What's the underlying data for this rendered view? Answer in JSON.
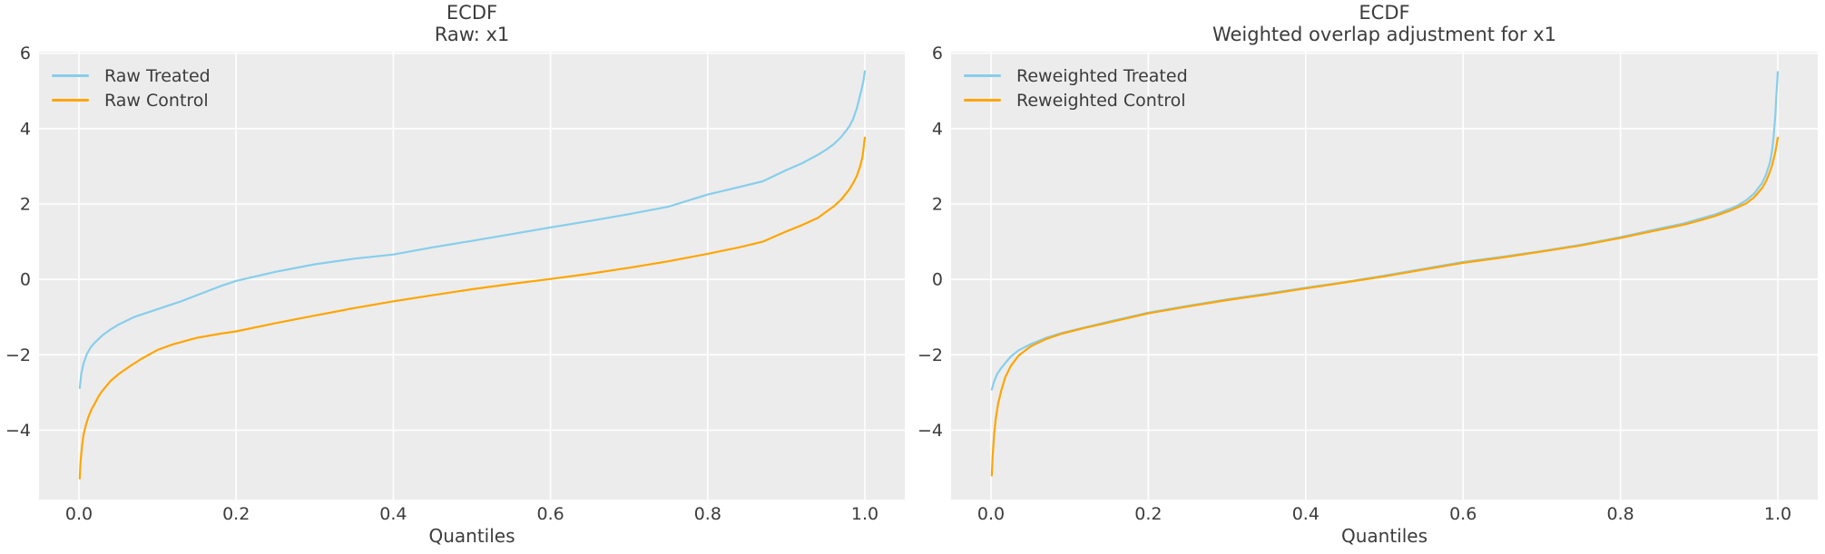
{
  "styles": {
    "panel_bg": "#ececec",
    "grid": "#ffffff",
    "text": "#3c3c3c",
    "treated_color": "#87ceeb",
    "control_color": "#ffa500"
  },
  "chart_data": [
    {
      "type": "line",
      "title_line1": "ECDF",
      "title_line2": "Raw: x1",
      "xlabel": "Quantiles",
      "grid": true,
      "legend_position": "upper left",
      "xlim": [
        -0.0508,
        1.0508
      ],
      "ylim": [
        -5.84,
        6.04
      ],
      "xticks": {
        "values": [
          0.0,
          0.2,
          0.4,
          0.6,
          0.8,
          1.0
        ],
        "labels": [
          "0.0",
          "0.2",
          "0.4",
          "0.6",
          "0.8",
          "1.0"
        ]
      },
      "yticks": {
        "values": [
          -4,
          -2,
          0,
          2,
          4,
          6
        ],
        "labels": [
          "−4",
          "−2",
          "0",
          "2",
          "4",
          "6"
        ]
      },
      "series": [
        {
          "name": "Raw Treated",
          "color": "#87ceeb",
          "x": [
            0.001,
            0.003,
            0.006,
            0.01,
            0.015,
            0.02,
            0.03,
            0.04,
            0.05,
            0.07,
            0.09,
            0.11,
            0.13,
            0.15,
            0.18,
            0.2,
            0.25,
            0.3,
            0.35,
            0.4,
            0.45,
            0.5,
            0.55,
            0.6,
            0.65,
            0.7,
            0.75,
            0.8,
            0.84,
            0.87,
            0.9,
            0.92,
            0.94,
            0.95,
            0.96,
            0.97,
            0.98,
            0.985,
            0.99,
            0.993,
            0.996,
            0.998,
            1.0
          ],
          "y": [
            -2.88,
            -2.5,
            -2.22,
            -1.98,
            -1.8,
            -1.68,
            -1.48,
            -1.33,
            -1.2,
            -1.0,
            -0.86,
            -0.72,
            -0.58,
            -0.42,
            -0.18,
            -0.04,
            0.2,
            0.4,
            0.55,
            0.66,
            0.85,
            1.02,
            1.2,
            1.38,
            1.55,
            1.73,
            1.93,
            2.25,
            2.45,
            2.6,
            2.9,
            3.08,
            3.3,
            3.43,
            3.58,
            3.78,
            4.05,
            4.25,
            4.55,
            4.8,
            5.05,
            5.25,
            5.52
          ]
        },
        {
          "name": "Raw Control",
          "color": "#ffa500",
          "x": [
            0.001,
            0.002,
            0.004,
            0.006,
            0.009,
            0.012,
            0.016,
            0.02,
            0.025,
            0.03,
            0.04,
            0.05,
            0.065,
            0.08,
            0.1,
            0.12,
            0.15,
            0.18,
            0.2,
            0.25,
            0.3,
            0.35,
            0.4,
            0.45,
            0.5,
            0.55,
            0.6,
            0.65,
            0.7,
            0.75,
            0.8,
            0.84,
            0.87,
            0.9,
            0.92,
            0.94,
            0.95,
            0.96,
            0.97,
            0.98,
            0.985,
            0.99,
            0.994,
            0.997,
            1.0
          ],
          "y": [
            -5.28,
            -4.85,
            -4.4,
            -4.1,
            -3.85,
            -3.65,
            -3.45,
            -3.3,
            -3.1,
            -2.95,
            -2.7,
            -2.52,
            -2.3,
            -2.1,
            -1.87,
            -1.72,
            -1.55,
            -1.44,
            -1.38,
            -1.16,
            -0.96,
            -0.76,
            -0.58,
            -0.42,
            -0.26,
            -0.12,
            0.01,
            0.15,
            0.31,
            0.48,
            0.68,
            0.85,
            1.0,
            1.27,
            1.44,
            1.63,
            1.78,
            1.93,
            2.12,
            2.38,
            2.55,
            2.75,
            3.0,
            3.25,
            3.76
          ]
        }
      ]
    },
    {
      "type": "line",
      "title_line1": "ECDF",
      "title_line2": "Weighted overlap adjustment for x1",
      "xlabel": "Quantiles",
      "grid": true,
      "legend_position": "upper left",
      "xlim": [
        -0.0508,
        1.0508
      ],
      "ylim": [
        -5.84,
        6.04
      ],
      "xticks": {
        "values": [
          0.0,
          0.2,
          0.4,
          0.6,
          0.8,
          1.0
        ],
        "labels": [
          "0.0",
          "0.2",
          "0.4",
          "0.6",
          "0.8",
          "1.0"
        ]
      },
      "yticks": {
        "values": [
          -4,
          -2,
          0,
          2,
          4,
          6
        ],
        "labels": [
          "−4",
          "−2",
          "0",
          "2",
          "4",
          "6"
        ]
      },
      "series": [
        {
          "name": "Reweighted Treated",
          "color": "#87ceeb",
          "x": [
            0.001,
            0.004,
            0.008,
            0.012,
            0.018,
            0.025,
            0.035,
            0.05,
            0.07,
            0.09,
            0.12,
            0.15,
            0.2,
            0.25,
            0.3,
            0.35,
            0.4,
            0.45,
            0.5,
            0.55,
            0.6,
            0.65,
            0.7,
            0.75,
            0.8,
            0.85,
            0.88,
            0.9,
            0.92,
            0.94,
            0.95,
            0.96,
            0.97,
            0.98,
            0.985,
            0.99,
            0.993,
            0.995,
            0.997,
            0.998,
            0.999,
            1.0
          ],
          "y": [
            -2.92,
            -2.7,
            -2.5,
            -2.38,
            -2.22,
            -2.05,
            -1.88,
            -1.72,
            -1.55,
            -1.42,
            -1.27,
            -1.12,
            -0.88,
            -0.7,
            -0.53,
            -0.38,
            -0.22,
            -0.07,
            0.1,
            0.28,
            0.46,
            0.6,
            0.75,
            0.92,
            1.12,
            1.35,
            1.48,
            1.6,
            1.72,
            1.88,
            1.97,
            2.1,
            2.28,
            2.55,
            2.78,
            3.1,
            3.45,
            3.85,
            4.4,
            4.8,
            5.15,
            5.5
          ]
        },
        {
          "name": "Reweighted Control",
          "color": "#ffa500",
          "x": [
            0.001,
            0.002,
            0.004,
            0.006,
            0.009,
            0.013,
            0.018,
            0.025,
            0.035,
            0.05,
            0.07,
            0.09,
            0.12,
            0.15,
            0.2,
            0.25,
            0.3,
            0.35,
            0.4,
            0.45,
            0.5,
            0.55,
            0.6,
            0.65,
            0.7,
            0.75,
            0.8,
            0.85,
            0.88,
            0.9,
            0.92,
            0.94,
            0.95,
            0.96,
            0.97,
            0.98,
            0.985,
            0.99,
            0.993,
            0.996,
            0.998,
            1.0
          ],
          "y": [
            -5.2,
            -4.7,
            -4.1,
            -3.7,
            -3.3,
            -2.95,
            -2.6,
            -2.3,
            -2.02,
            -1.78,
            -1.58,
            -1.44,
            -1.28,
            -1.14,
            -0.9,
            -0.72,
            -0.55,
            -0.4,
            -0.24,
            -0.08,
            0.08,
            0.26,
            0.44,
            0.58,
            0.74,
            0.9,
            1.1,
            1.32,
            1.45,
            1.56,
            1.68,
            1.83,
            1.92,
            2.02,
            2.18,
            2.42,
            2.6,
            2.85,
            3.05,
            3.3,
            3.5,
            3.76
          ]
        }
      ]
    }
  ]
}
